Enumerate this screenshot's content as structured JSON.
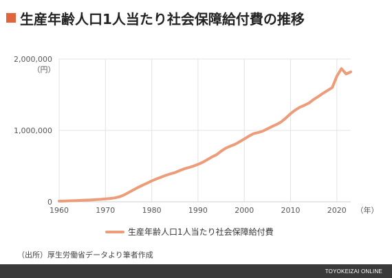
{
  "header": {
    "title": "生産年齢人口1人当たり社会保障給付費の推移",
    "accent_color": "#e0653c"
  },
  "source_note": "（出所）厚生労働省データより筆者作成",
  "footer": {
    "brand": "TOYOKEIZAI ONLINE",
    "background_color": "#3a3a3a"
  },
  "chart_data": {
    "type": "line",
    "title": "生産年齢人口1人当たり社会保障給付費の推移",
    "xlabel": "（年）",
    "ylabel": "（円）",
    "xlim": [
      1960,
      2023
    ],
    "ylim": [
      0,
      2000000
    ],
    "x_ticks": [
      1960,
      1970,
      1980,
      1990,
      2000,
      2010,
      2020
    ],
    "y_ticks": [
      0,
      1000000,
      2000000
    ],
    "y_tick_labels": [
      "0",
      "1,000,000",
      "2,000,000"
    ],
    "grid": true,
    "legend_position": "bottom-center",
    "series": [
      {
        "name": "生産年齢人口1人当たり社会保障給付費",
        "color": "#ec9c78",
        "x": [
          1960,
          1961,
          1962,
          1963,
          1964,
          1965,
          1966,
          1967,
          1968,
          1969,
          1970,
          1971,
          1972,
          1973,
          1974,
          1975,
          1976,
          1977,
          1978,
          1979,
          1980,
          1981,
          1982,
          1983,
          1984,
          1985,
          1986,
          1987,
          1988,
          1989,
          1990,
          1991,
          1992,
          1993,
          1994,
          1995,
          1996,
          1997,
          1998,
          1999,
          2000,
          2001,
          2002,
          2003,
          2004,
          2005,
          2006,
          2007,
          2008,
          2009,
          2010,
          2011,
          2012,
          2013,
          2014,
          2015,
          2016,
          2017,
          2018,
          2019,
          2020,
          2021,
          2022,
          2023
        ],
        "values": [
          10000,
          11000,
          13000,
          15000,
          18000,
          21000,
          24000,
          27000,
          31000,
          35000,
          41000,
          47000,
          55000,
          70000,
          95000,
          130000,
          165000,
          200000,
          232000,
          262000,
          292000,
          320000,
          345000,
          370000,
          390000,
          410000,
          437000,
          462000,
          480000,
          500000,
          525000,
          553000,
          590000,
          628000,
          660000,
          710000,
          752000,
          780000,
          805000,
          842000,
          880000,
          920000,
          955000,
          970000,
          990000,
          1022000,
          1055000,
          1085000,
          1120000,
          1175000,
          1235000,
          1285000,
          1325000,
          1352000,
          1385000,
          1435000,
          1475000,
          1520000,
          1560000,
          1600000,
          1760000,
          1865000,
          1790000,
          1820000
        ]
      }
    ]
  }
}
